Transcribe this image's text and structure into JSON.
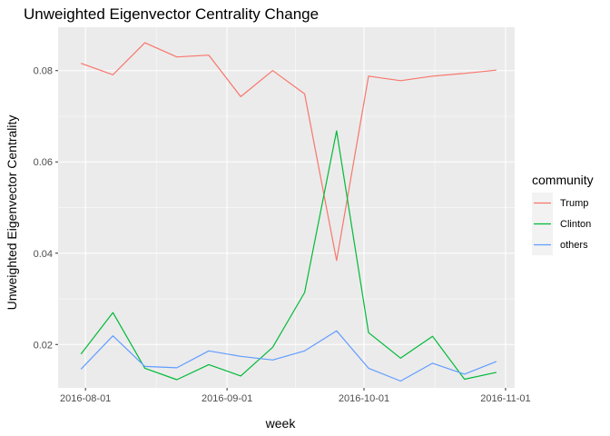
{
  "chart_data": {
    "type": "line",
    "title": "Unweighted Eigenvector Centrality Change",
    "xlabel": "week",
    "ylabel": "Unweighted Eigenvector Centrality",
    "x_ticks": [
      "2016-08-01",
      "2016-09-01",
      "2016-10-01",
      "2016-11-01"
    ],
    "y_ticks": [
      "0.02",
      "0.04",
      "0.06",
      "0.08"
    ],
    "xlim": [
      "2016-07-26",
      "2016-11-03"
    ],
    "ylim": [
      0.0105,
      0.0895
    ],
    "grid": true,
    "legend": {
      "title": "community",
      "position": "right"
    },
    "x": [
      "2016-07-31",
      "2016-08-07",
      "2016-08-14",
      "2016-08-21",
      "2016-08-28",
      "2016-09-04",
      "2016-09-11",
      "2016-09-18",
      "2016-09-25",
      "2016-10-02",
      "2016-10-09",
      "2016-10-16",
      "2016-10-23",
      "2016-10-30"
    ],
    "series": [
      {
        "name": "Trump",
        "color": "#F8766D",
        "values": [
          0.0816,
          0.0791,
          0.0861,
          0.083,
          0.0834,
          0.0743,
          0.08,
          0.0749,
          0.0384,
          0.0788,
          0.0778,
          0.0788,
          0.0794,
          0.0801
        ]
      },
      {
        "name": "Clinton",
        "color": "#00BA38",
        "values": [
          0.0179,
          0.027,
          0.0148,
          0.0123,
          0.0156,
          0.0131,
          0.0194,
          0.0314,
          0.0668,
          0.0226,
          0.017,
          0.0218,
          0.0124,
          0.0139
        ]
      },
      {
        "name": "others",
        "color": "#619CFF",
        "values": [
          0.0146,
          0.0219,
          0.0152,
          0.0149,
          0.0186,
          0.0174,
          0.0166,
          0.0186,
          0.023,
          0.0148,
          0.012,
          0.0159,
          0.0135,
          0.0163
        ]
      }
    ]
  }
}
